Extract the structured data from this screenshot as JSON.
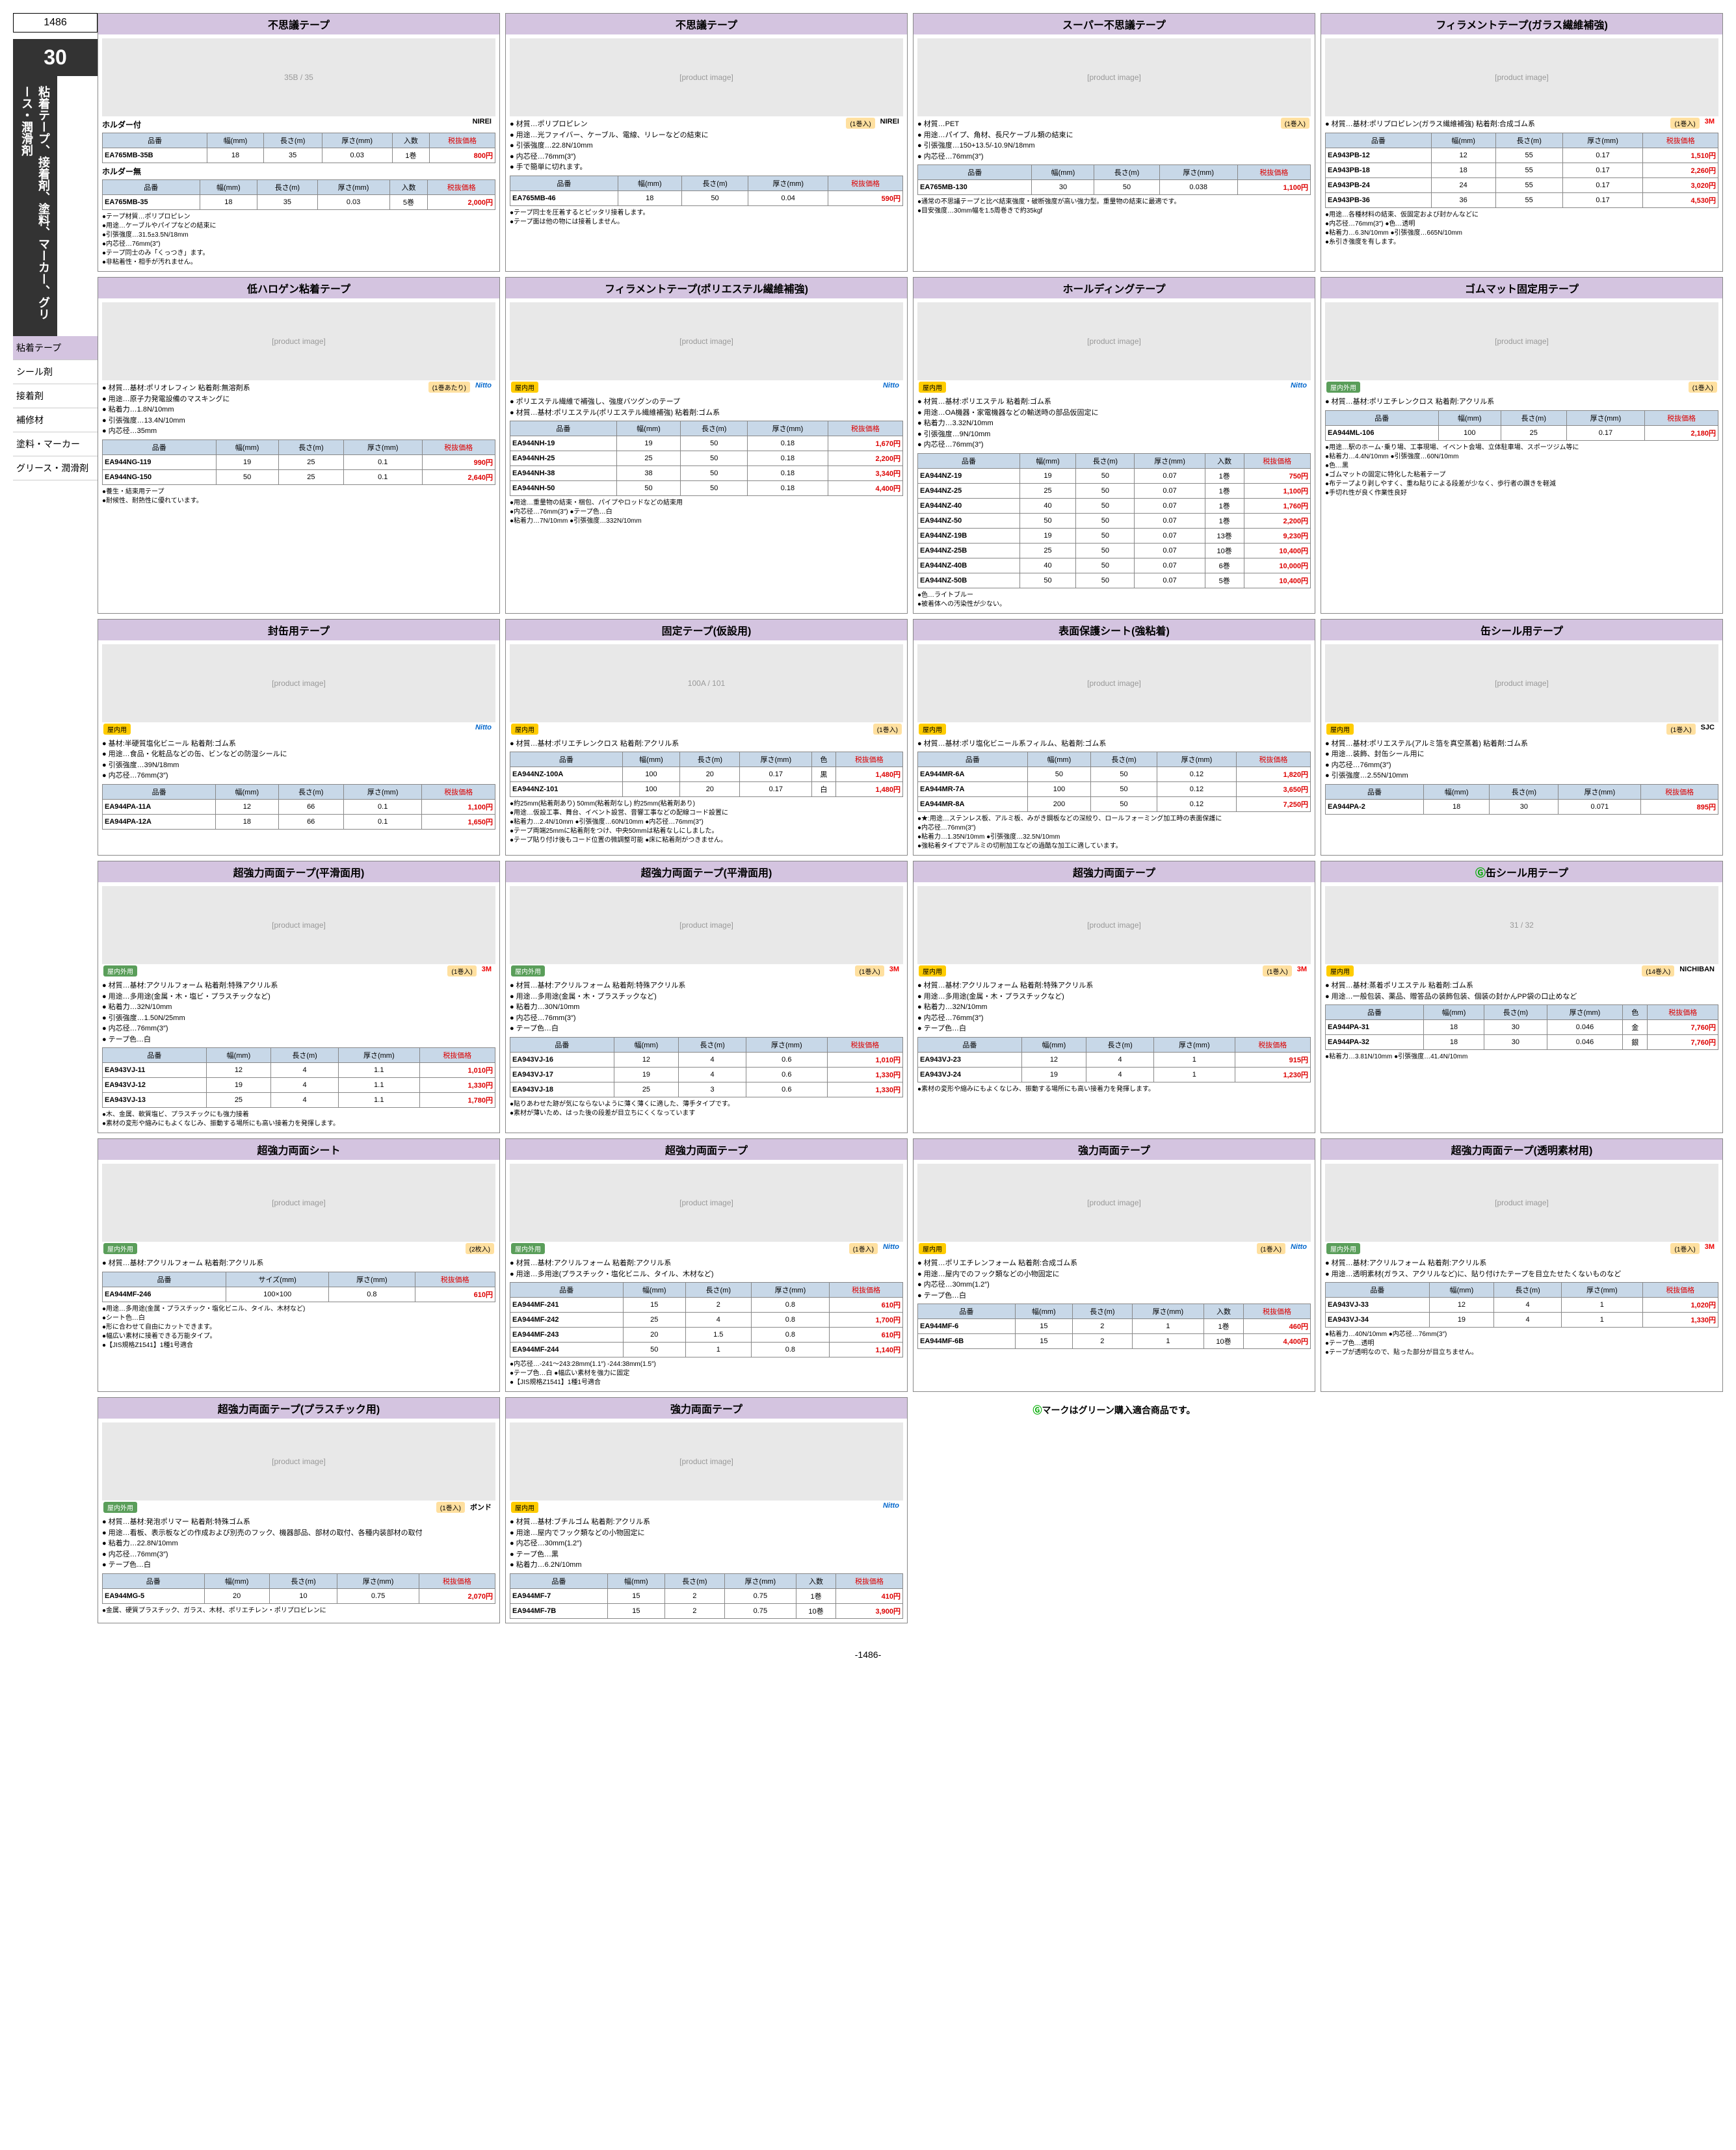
{
  "page_number": "1486",
  "section_number": "30",
  "section_title": "粘着テープ、接着剤、塗料、マーカー、グリース・潤滑剤",
  "nav_items": [
    "粘着テープ",
    "シール剤",
    "接着剤",
    "補修材",
    "塗料・マーカー",
    "グリース・潤滑剤"
  ],
  "footer": "-1486-",
  "green_mark_note": "マークはグリーン購入適合商品です。",
  "common_headers": {
    "code": "品番",
    "width": "幅(mm)",
    "length": "長さ(m)",
    "thickness": "厚さ(mm)",
    "qty": "入数",
    "price": "税抜価格",
    "size": "サイズ(mm)",
    "color": "色"
  },
  "products": [
    {
      "title": "不思議テープ",
      "img_label": "35B / 35",
      "sub_sections": [
        {
          "label": "ホルダー付",
          "rows": [
            [
              "EA765MB-35B",
              "18",
              "35",
              "0.03",
              "1巻",
              "800円"
            ]
          ]
        },
        {
          "label": "ホルダー無",
          "rows": [
            [
              "EA765MB-35",
              "18",
              "35",
              "0.03",
              "5巻",
              "2,000円"
            ]
          ]
        }
      ],
      "notes": [
        "テープ材質…ポリプロピレン",
        "用途…ケーブルやパイプなどの結束に",
        "引張強度…31.5±3.5N/18mm",
        "内芯径…76mm(3″)",
        "テープ同士のみ「くっつき」ます。",
        "非粘着性・相手が汚れません。"
      ],
      "brand": "NIREI"
    },
    {
      "title": "不思議テープ",
      "bullets": [
        "材質…ポリプロピレン",
        "用途…光ファイバー、ケーブル、電線、リレーなどの結束に",
        "引張強度…22.8N/10mm",
        "内芯径…76mm(3″)",
        "手で簡単に切れます。"
      ],
      "rows": [
        [
          "EA765MB-46",
          "18",
          "50",
          "0.04",
          "590円"
        ]
      ],
      "brand": "NIREI",
      "pack": "(1巻入)",
      "notes": [
        "テープ同士を圧着するとピッタリ接着します。",
        "テープ面は他の物には接着しません。"
      ]
    },
    {
      "title": "スーパー不思議テープ",
      "bullets": [
        "材質…PET",
        "用途…パイプ、角材、長尺ケーブル類の結束に",
        "引張強度…150+13.5/-10.9N/18mm",
        "内芯径…76mm(3″)"
      ],
      "rows": [
        [
          "EA765MB-130",
          "30",
          "50",
          "0.038",
          "1,100円"
        ]
      ],
      "pack": "(1巻入)",
      "notes": [
        "通常の不思議テープと比べ結束強度・破断強度が高い強力型。重量物の結束に最適です。",
        "目安強度…30mm幅を1.5周巻きで約35kgf"
      ]
    },
    {
      "title": "フィラメントテープ(ガラス繊維補強)",
      "bullets": [
        "材質…基材:ポリプロピレン(ガラス繊維補強) 粘着剤:合成ゴム系"
      ],
      "rows": [
        [
          "EA943PB-12",
          "12",
          "55",
          "0.17",
          "1,510円"
        ],
        [
          "EA943PB-18",
          "18",
          "55",
          "0.17",
          "2,260円"
        ],
        [
          "EA943PB-24",
          "24",
          "55",
          "0.17",
          "3,020円"
        ],
        [
          "EA943PB-36",
          "36",
          "55",
          "0.17",
          "4,530円"
        ]
      ],
      "brand": "3M",
      "pack": "(1巻入)",
      "notes": [
        "用途…各種材料の結束、仮固定および封かんなどに",
        "内芯径…76mm(3″) ●色…透明",
        "粘着力…6.3N/10mm ●引張強度…665N/10mm",
        "糸引き強度を有します。"
      ]
    },
    {
      "title": "低ハロゲン粘着テープ",
      "bullets": [
        "材質…基材:ポリオレフィン 粘着剤:無溶剤系",
        "用途…原子力発電設備のマスキングに",
        "粘着力…1.8N/10mm",
        "引張強度…13.4N/10mm",
        "内芯径…35mm"
      ],
      "rows": [
        [
          "EA944NG-119",
          "19",
          "25",
          "0.1",
          "990円"
        ],
        [
          "EA944NG-150",
          "50",
          "25",
          "0.1",
          "2,640円"
        ]
      ],
      "brand": "Nitto",
      "pack": "(1巻あたり)",
      "notes": [
        "養生・結束用テープ",
        "耐候性、耐熱性に優れています。"
      ]
    },
    {
      "title": "フィラメントテープ(ポリエステル繊維補強)",
      "tag": "屋内用",
      "brand": "Nitto",
      "bullets": [
        "ポリエステル繊維で補強し、強度バツグンのテープ",
        "材質…基材:ポリエステル(ポリエステル繊維補強) 粘着剤:ゴム系"
      ],
      "rows": [
        [
          "EA944NH-19",
          "19",
          "50",
          "0.18",
          "1,670円"
        ],
        [
          "EA944NH-25",
          "25",
          "50",
          "0.18",
          "2,200円"
        ],
        [
          "EA944NH-38",
          "38",
          "50",
          "0.18",
          "3,340円"
        ],
        [
          "EA944NH-50",
          "50",
          "50",
          "0.18",
          "4,400円"
        ]
      ],
      "notes": [
        "用途…重量物の結束・梱包、パイプやロッドなどの結束用",
        "内芯径…76mm(3″) ●テープ色…白",
        "粘着力…7N/10mm ●引張強度…332N/10mm"
      ]
    },
    {
      "title": "ホールディングテープ",
      "tag": "屋内用",
      "brand": "Nitto",
      "bullets": [
        "材質…基材:ポリエステル 粘着剤:ゴム系",
        "用途…OA機器・家電機器などの輸送時の部品仮固定に",
        "粘着力…3.32N/10mm",
        "引張強度…9N/10mm",
        "内芯径…76mm(3″)"
      ],
      "has_qty": true,
      "rows": [
        [
          "EA944NZ-19",
          "19",
          "50",
          "0.07",
          "1巻",
          "750円"
        ],
        [
          "EA944NZ-25",
          "25",
          "50",
          "0.07",
          "1巻",
          "1,100円"
        ],
        [
          "EA944NZ-40",
          "40",
          "50",
          "0.07",
          "1巻",
          "1,760円"
        ],
        [
          "EA944NZ-50",
          "50",
          "50",
          "0.07",
          "1巻",
          "2,200円"
        ],
        [
          "EA944NZ-19B",
          "19",
          "50",
          "0.07",
          "13巻",
          "9,230円"
        ],
        [
          "EA944NZ-25B",
          "25",
          "50",
          "0.07",
          "10巻",
          "10,400円"
        ],
        [
          "EA944NZ-40B",
          "40",
          "50",
          "0.07",
          "6巻",
          "10,000円"
        ],
        [
          "EA944NZ-50B",
          "50",
          "50",
          "0.07",
          "5巻",
          "10,400円"
        ]
      ],
      "notes": [
        "色…ライトブルー",
        "被着体への汚染性が少ない。"
      ]
    },
    {
      "title": "ゴムマット固定用テープ",
      "tag": "屋内外用",
      "bullets": [
        "材質…基材:ポリエチレンクロス 粘着剤:アクリル系"
      ],
      "rows": [
        [
          "EA944ML-106",
          "100",
          "25",
          "0.17",
          "2,180円"
        ]
      ],
      "pack": "(1巻入)",
      "notes": [
        "用途…駅のホーム･乗り場、工事現場、イベント会場、立体駐車場、スポーツジム等に",
        "粘着力…4.4N/10mm ●引張強度…60N/10mm",
        "色…黒",
        "ゴムマットの固定に特化した粘着テープ",
        "布テープより剥しやすく、重ね貼りによる段差が少なく、歩行者の躓きを軽減",
        "手切れ性が良く作業性良好"
      ]
    },
    {
      "title": "封缶用テープ",
      "tag": "屋内用",
      "brand": "Nitto",
      "bullets": [
        "基材:半硬質塩化ビニール 粘着剤:ゴム系",
        "用途…食品・化粧品などの缶、ビンなどの防湿シールに",
        "引張強度…39N/18mm",
        "内芯径…76mm(3″)"
      ],
      "rows": [
        [
          "EA944PA-11A",
          "12",
          "66",
          "0.1",
          "1,100円"
        ],
        [
          "EA944PA-12A",
          "18",
          "66",
          "0.1",
          "1,650円"
        ]
      ]
    },
    {
      "title": "固定テープ(仮設用)",
      "tag": "屋内用",
      "pack": "(1巻入)",
      "img_label": "100A / 101",
      "bullets": [
        "材質…基材:ポリエチレンクロス 粘着剤:アクリル系"
      ],
      "has_color": true,
      "rows": [
        [
          "EA944NZ-100A",
          "100",
          "20",
          "0.17",
          "黒",
          "1,480円"
        ],
        [
          "EA944NZ-101",
          "100",
          "20",
          "0.17",
          "白",
          "1,480円"
        ]
      ],
      "notes": [
        "約25mm(粘着剤あり) 50mm(粘着剤なし) 約25mm(粘着剤あり)",
        "用途…仮設工事、舞台、イベント設営、音響工事などの配線コード設置に",
        "粘着力…2.4N/10mm ●引張強度…60N/10mm ●内芯径…76mm(3″)",
        "テープ両端25mmに粘着剤をつけ、中央50mmは粘着なしにしました。",
        "テープ貼り付け後もコード位置の微調整可能 ●床に粘着剤がつきません。"
      ]
    },
    {
      "title": "表面保護シート(強粘着)",
      "tag": "屋内用",
      "bullets": [
        "材質…基材:ポリ塩化ビニール系フィルム、粘着剤:ゴム系"
      ],
      "rows": [
        [
          "EA944MR-6A",
          "50",
          "50",
          "0.12",
          "1,820円"
        ],
        [
          "EA944MR-7A",
          "100",
          "50",
          "0.12",
          "3,650円"
        ],
        [
          "EA944MR-8A",
          "200",
          "50",
          "0.12",
          "7,250円"
        ]
      ],
      "notes": [
        "★:用途…ステンレス板、アルミ板、みがき鋼板などの深絞り、ロールフォーミング加工時の表面保護に",
        "内芯径…76mm(3″)",
        "粘着力…1.35N/10mm ●引張強度…32.5N/10mm",
        "強粘着タイプでアルミの切削加工などの過酷な加工に適しています。"
      ]
    },
    {
      "title": "缶シール用テープ",
      "tag": "屋内用",
      "brand": "SJC",
      "pack": "(1巻入)",
      "bullets": [
        "材質…基材:ポリエステル(アルミ箔を真空蒸着) 粘着剤:ゴム系",
        "用途…装飾、封缶シール用に",
        "内芯径…76mm(3″)",
        "引張強度…2.55N/10mm"
      ],
      "rows": [
        [
          "EA944PA-2",
          "18",
          "30",
          "0.071",
          "895円"
        ]
      ]
    },
    {
      "title": "超強力両面テープ(平滑面用)",
      "tag": "屋内外用",
      "brand": "3M",
      "pack": "(1巻入)",
      "bullets": [
        "材質…基材:アクリルフォーム 粘着剤:特殊アクリル系",
        "用途…多用途(金属・木・塩ビ・プラスチックなど)",
        "粘着力…32N/10mm",
        "引張強度…1.50N/25mm",
        "内芯径…76mm(3″)",
        "テープ色…白"
      ],
      "rows": [
        [
          "EA943VJ-11",
          "12",
          "4",
          "1.1",
          "1,010円"
        ],
        [
          "EA943VJ-12",
          "19",
          "4",
          "1.1",
          "1,330円"
        ],
        [
          "EA943VJ-13",
          "25",
          "4",
          "1.1",
          "1,780円"
        ]
      ],
      "notes": [
        "木、金属、軟質塩ビ、プラスチックにも強力接着",
        "素材の変形や縮みにもよくなじみ、振動する場所にも高い接着力を発揮します。"
      ]
    },
    {
      "title": "超強力両面テープ(平滑面用)",
      "tag": "屋内外用",
      "brand": "3M",
      "pack": "(1巻入)",
      "bullets": [
        "材質…基材:アクリルフォーム 粘着剤:特殊アクリル系",
        "用途…多用途(金属・木・プラスチックなど)",
        "粘着力…30N/10mm",
        "内芯径…76mm(3″)",
        "テープ色…白"
      ],
      "rows": [
        [
          "EA943VJ-16",
          "12",
          "4",
          "0.6",
          "1,010円"
        ],
        [
          "EA943VJ-17",
          "19",
          "4",
          "0.6",
          "1,330円"
        ],
        [
          "EA943VJ-18",
          "25",
          "3",
          "0.6",
          "1,330円"
        ]
      ],
      "notes": [
        "貼りあわせた跡が気にならないように薄く薄くに適した、薄手タイプです。",
        "素材が薄いため、はった後の段差が目立ちにくくなっています"
      ]
    },
    {
      "title": "超強力両面テープ",
      "tag": "屋内用",
      "brand": "3M",
      "pack": "(1巻入)",
      "bullets": [
        "材質…基材:アクリルフォーム 粘着剤:特殊アクリル系",
        "用途…多用途(金属・木・プラスチックなど)",
        "粘着力…32N/10mm",
        "内芯径…76mm(3″)",
        "テープ色…白"
      ],
      "rows": [
        [
          "EA943VJ-23",
          "12",
          "4",
          "1",
          "915円"
        ],
        [
          "EA943VJ-24",
          "19",
          "4",
          "1",
          "1,230円"
        ]
      ],
      "notes": [
        "素材の変形や縮みにもよくなじみ、振動する場所にも高い接着力を発揮します。"
      ]
    },
    {
      "title": "缶シール用テープ",
      "green": true,
      "tag": "屋内用",
      "brand": "NICHIBAN",
      "img_label": "31 / 32",
      "bullets": [
        "材質…基材:蒸着ポリエステル 粘着剤:ゴム系",
        "用途…一般包装、薬品、贈答品の装飾包装、個装の封かんPP袋の口止めなど"
      ],
      "has_color": true,
      "rows": [
        [
          "EA944PA-31",
          "18",
          "30",
          "0.046",
          "金",
          "7,760円"
        ],
        [
          "EA944PA-32",
          "18",
          "30",
          "0.046",
          "銀",
          "7,760円"
        ]
      ],
      "pack": "(14巻入)",
      "notes": [
        "粘着力…3.81N/10mm ●引張強度…41.4N/10mm"
      ]
    },
    {
      "title": "超強力両面シート",
      "tag": "屋内外用",
      "pack": "(2枚入)",
      "bullets": [
        "材質…基材:アクリルフォーム 粘着剤:アクリル系"
      ],
      "size_rows": [
        [
          "EA944MF-246",
          "100×100",
          "0.8",
          "610円"
        ]
      ],
      "notes": [
        "用途…多用途(金属・プラスチック・塩化ビニル、タイル、木材など)",
        "シート色…白",
        "形に合わせて自由にカットできます。",
        "幅広い素材に接着できる万能タイプ。",
        "【JIS規格Z1541】1種1号適合"
      ]
    },
    {
      "title": "超強力両面テープ",
      "tag": "屋内外用",
      "brand": "Nitto",
      "pack": "(1巻入)",
      "bullets": [
        "材質…基材:アクリルフォーム 粘着剤:アクリル系",
        "用途…多用途(プラスチック・塩化ビニル、タイル、木材など)"
      ],
      "rows": [
        [
          "EA944MF-241",
          "15",
          "2",
          "0.8",
          "610円"
        ],
        [
          "EA944MF-242",
          "25",
          "4",
          "0.8",
          "1,700円"
        ],
        [
          "EA944MF-243",
          "20",
          "1.5",
          "0.8",
          "610円"
        ],
        [
          "EA944MF-244",
          "50",
          "1",
          "0.8",
          "1,140円"
        ]
      ],
      "notes": [
        "内芯径…-241～243:28mm(1.1″)  -244:38mm(1.5″)",
        "テープ色…白 ●幅広い素材を強力に固定",
        "【JIS規格Z1541】1種1号適合"
      ]
    },
    {
      "title": "強力両面テープ",
      "tag": "屋内用",
      "brand": "Nitto",
      "pack": "(1巻入)",
      "bullets": [
        "材質…ポリエチレンフォーム 粘着剤:合成ゴム系",
        "用途…屋内でのフック類などの小物固定に",
        "内芯径…30mm(1.2″)",
        "テープ色…白"
      ],
      "has_qty": true,
      "rows": [
        [
          "EA944MF-6",
          "15",
          "2",
          "1",
          "1巻",
          "460円"
        ],
        [
          "EA944MF-6B",
          "15",
          "2",
          "1",
          "10巻",
          "4,400円"
        ]
      ]
    },
    {
      "title": "超強力両面テープ(透明素材用)",
      "tag": "屋内外用",
      "brand": "3M",
      "pack": "(1巻入)",
      "bullets": [
        "材質…基材:アクリルフォーム 粘着剤:アクリル系",
        "用途…透明素材(ガラス、アクリルなど)に、貼り付けたテープを目立たせたくないものなど"
      ],
      "rows": [
        [
          "EA943VJ-33",
          "12",
          "4",
          "1",
          "1,020円"
        ],
        [
          "EA943VJ-34",
          "19",
          "4",
          "1",
          "1,330円"
        ]
      ],
      "notes": [
        "粘着力…40N/10mm ●内芯径…76mm(3″)",
        "テープ色…透明",
        "テープが透明なので、貼った部分が目立ちません。"
      ]
    },
    {
      "title": "超強力両面テープ(プラスチック用)",
      "tag": "屋内外用",
      "brand": "ボンド",
      "pack": "(1巻入)",
      "bullets": [
        "材質…基材:発泡ポリマー 粘着剤:特殊ゴム系",
        "用途…看板、表示板などの作成および別売のフック、機器部品、部材の取付、各種内装部材の取付",
        "粘着力…22.8N/10mm",
        "内芯径…76mm(3″)",
        "テープ色…白"
      ],
      "rows": [
        [
          "EA944MG-5",
          "20",
          "10",
          "0.75",
          "2,070円"
        ]
      ],
      "notes": [
        "金属、硬質プラスチック、ガラス、木材、ポリエチレン・ポリプロピレンに"
      ]
    },
    {
      "title": "強力両面テープ",
      "tag": "屋内用",
      "brand": "Nitto",
      "bullets": [
        "材質…基材:ブチルゴム 粘着剤:アクリル系",
        "用途…屋内でフック類などの小物固定に",
        "内芯径…30mm(1.2″)",
        "テープ色…黒",
        "粘着力…6.2N/10mm"
      ],
      "has_qty": true,
      "rows": [
        [
          "EA944MF-7",
          "15",
          "2",
          "0.75",
          "1巻",
          "410円"
        ],
        [
          "EA944MF-7B",
          "15",
          "2",
          "0.75",
          "10巻",
          "3,900円"
        ]
      ]
    }
  ]
}
